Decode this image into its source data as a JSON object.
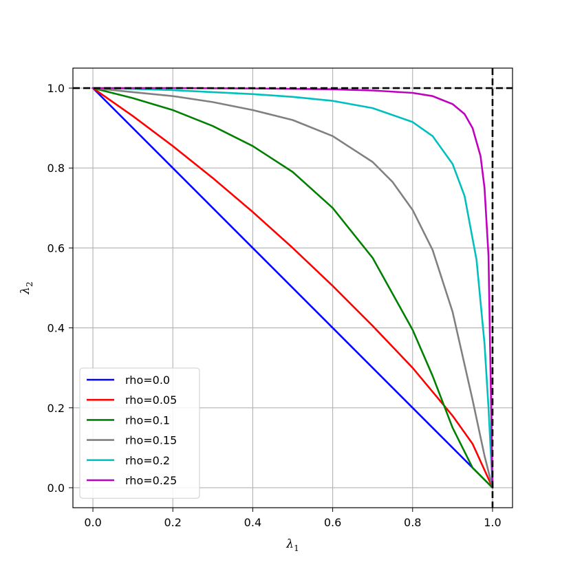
{
  "chart_data": {
    "type": "line",
    "xlabel": "λ",
    "xlabel_sub": "1",
    "ylabel": "λ",
    "ylabel_sub": "2",
    "xlim": [
      -0.05,
      1.05
    ],
    "ylim": [
      -0.05,
      1.05
    ],
    "x_ticks": [
      0.0,
      0.2,
      0.4,
      0.6,
      0.8,
      1.0
    ],
    "x_tick_labels": [
      "0.0",
      "0.2",
      "0.4",
      "0.6",
      "0.8",
      "1.0"
    ],
    "y_ticks": [
      0.0,
      0.2,
      0.4,
      0.6,
      0.8,
      1.0
    ],
    "y_tick_labels": [
      "0.0",
      "0.2",
      "0.4",
      "0.6",
      "0.8",
      "1.0"
    ],
    "grid": true,
    "legend_position": "lower-left",
    "reference_lines": [
      {
        "orientation": "horizontal",
        "value": 1.0,
        "style": "dashed",
        "color": "#000000"
      },
      {
        "orientation": "vertical",
        "value": 1.0,
        "style": "dashed",
        "color": "#000000"
      }
    ],
    "series": [
      {
        "name": "rho=0.0",
        "color": "#0000ff",
        "x": [
          0,
          0.2,
          0.4,
          0.6,
          0.8,
          1.0
        ],
        "y": [
          1.0,
          0.8,
          0.6,
          0.4,
          0.2,
          0.0
        ]
      },
      {
        "name": "rho=0.05",
        "color": "#ff0000",
        "x": [
          0,
          0.1,
          0.2,
          0.3,
          0.4,
          0.5,
          0.6,
          0.7,
          0.8,
          0.9,
          0.95,
          1.0
        ],
        "y": [
          1.0,
          0.93,
          0.855,
          0.775,
          0.69,
          0.6,
          0.505,
          0.405,
          0.3,
          0.18,
          0.11,
          0.0
        ]
      },
      {
        "name": "rho=0.1",
        "color": "#008000",
        "x": [
          0,
          0.1,
          0.2,
          0.3,
          0.4,
          0.5,
          0.6,
          0.7,
          0.8,
          0.85,
          0.9,
          0.95,
          1.0
        ],
        "y": [
          1.0,
          0.975,
          0.945,
          0.905,
          0.855,
          0.79,
          0.7,
          0.575,
          0.395,
          0.28,
          0.15,
          0.05,
          0.0
        ]
      },
      {
        "name": "rho=0.15",
        "color": "#808080",
        "x": [
          0,
          0.1,
          0.2,
          0.3,
          0.4,
          0.5,
          0.6,
          0.7,
          0.75,
          0.8,
          0.85,
          0.9,
          0.95,
          0.98,
          1.0
        ],
        "y": [
          1.0,
          0.99,
          0.98,
          0.965,
          0.945,
          0.92,
          0.88,
          0.815,
          0.765,
          0.695,
          0.595,
          0.44,
          0.22,
          0.08,
          0.0
        ]
      },
      {
        "name": "rho=0.2",
        "color": "#00bfbf",
        "x": [
          0,
          0.1,
          0.2,
          0.3,
          0.4,
          0.5,
          0.6,
          0.7,
          0.8,
          0.85,
          0.9,
          0.93,
          0.96,
          0.98,
          0.99,
          1.0
        ],
        "y": [
          1.0,
          0.998,
          0.995,
          0.99,
          0.985,
          0.978,
          0.968,
          0.95,
          0.915,
          0.88,
          0.81,
          0.73,
          0.57,
          0.36,
          0.2,
          0.0
        ]
      },
      {
        "name": "rho=0.25",
        "color": "#bf00bf",
        "x": [
          0,
          0.2,
          0.4,
          0.6,
          0.7,
          0.8,
          0.85,
          0.9,
          0.93,
          0.95,
          0.97,
          0.98,
          0.99,
          1.0
        ],
        "y": [
          1.0,
          1.0,
          0.999,
          0.997,
          0.994,
          0.988,
          0.98,
          0.96,
          0.935,
          0.9,
          0.83,
          0.75,
          0.58,
          0.0
        ]
      }
    ]
  }
}
